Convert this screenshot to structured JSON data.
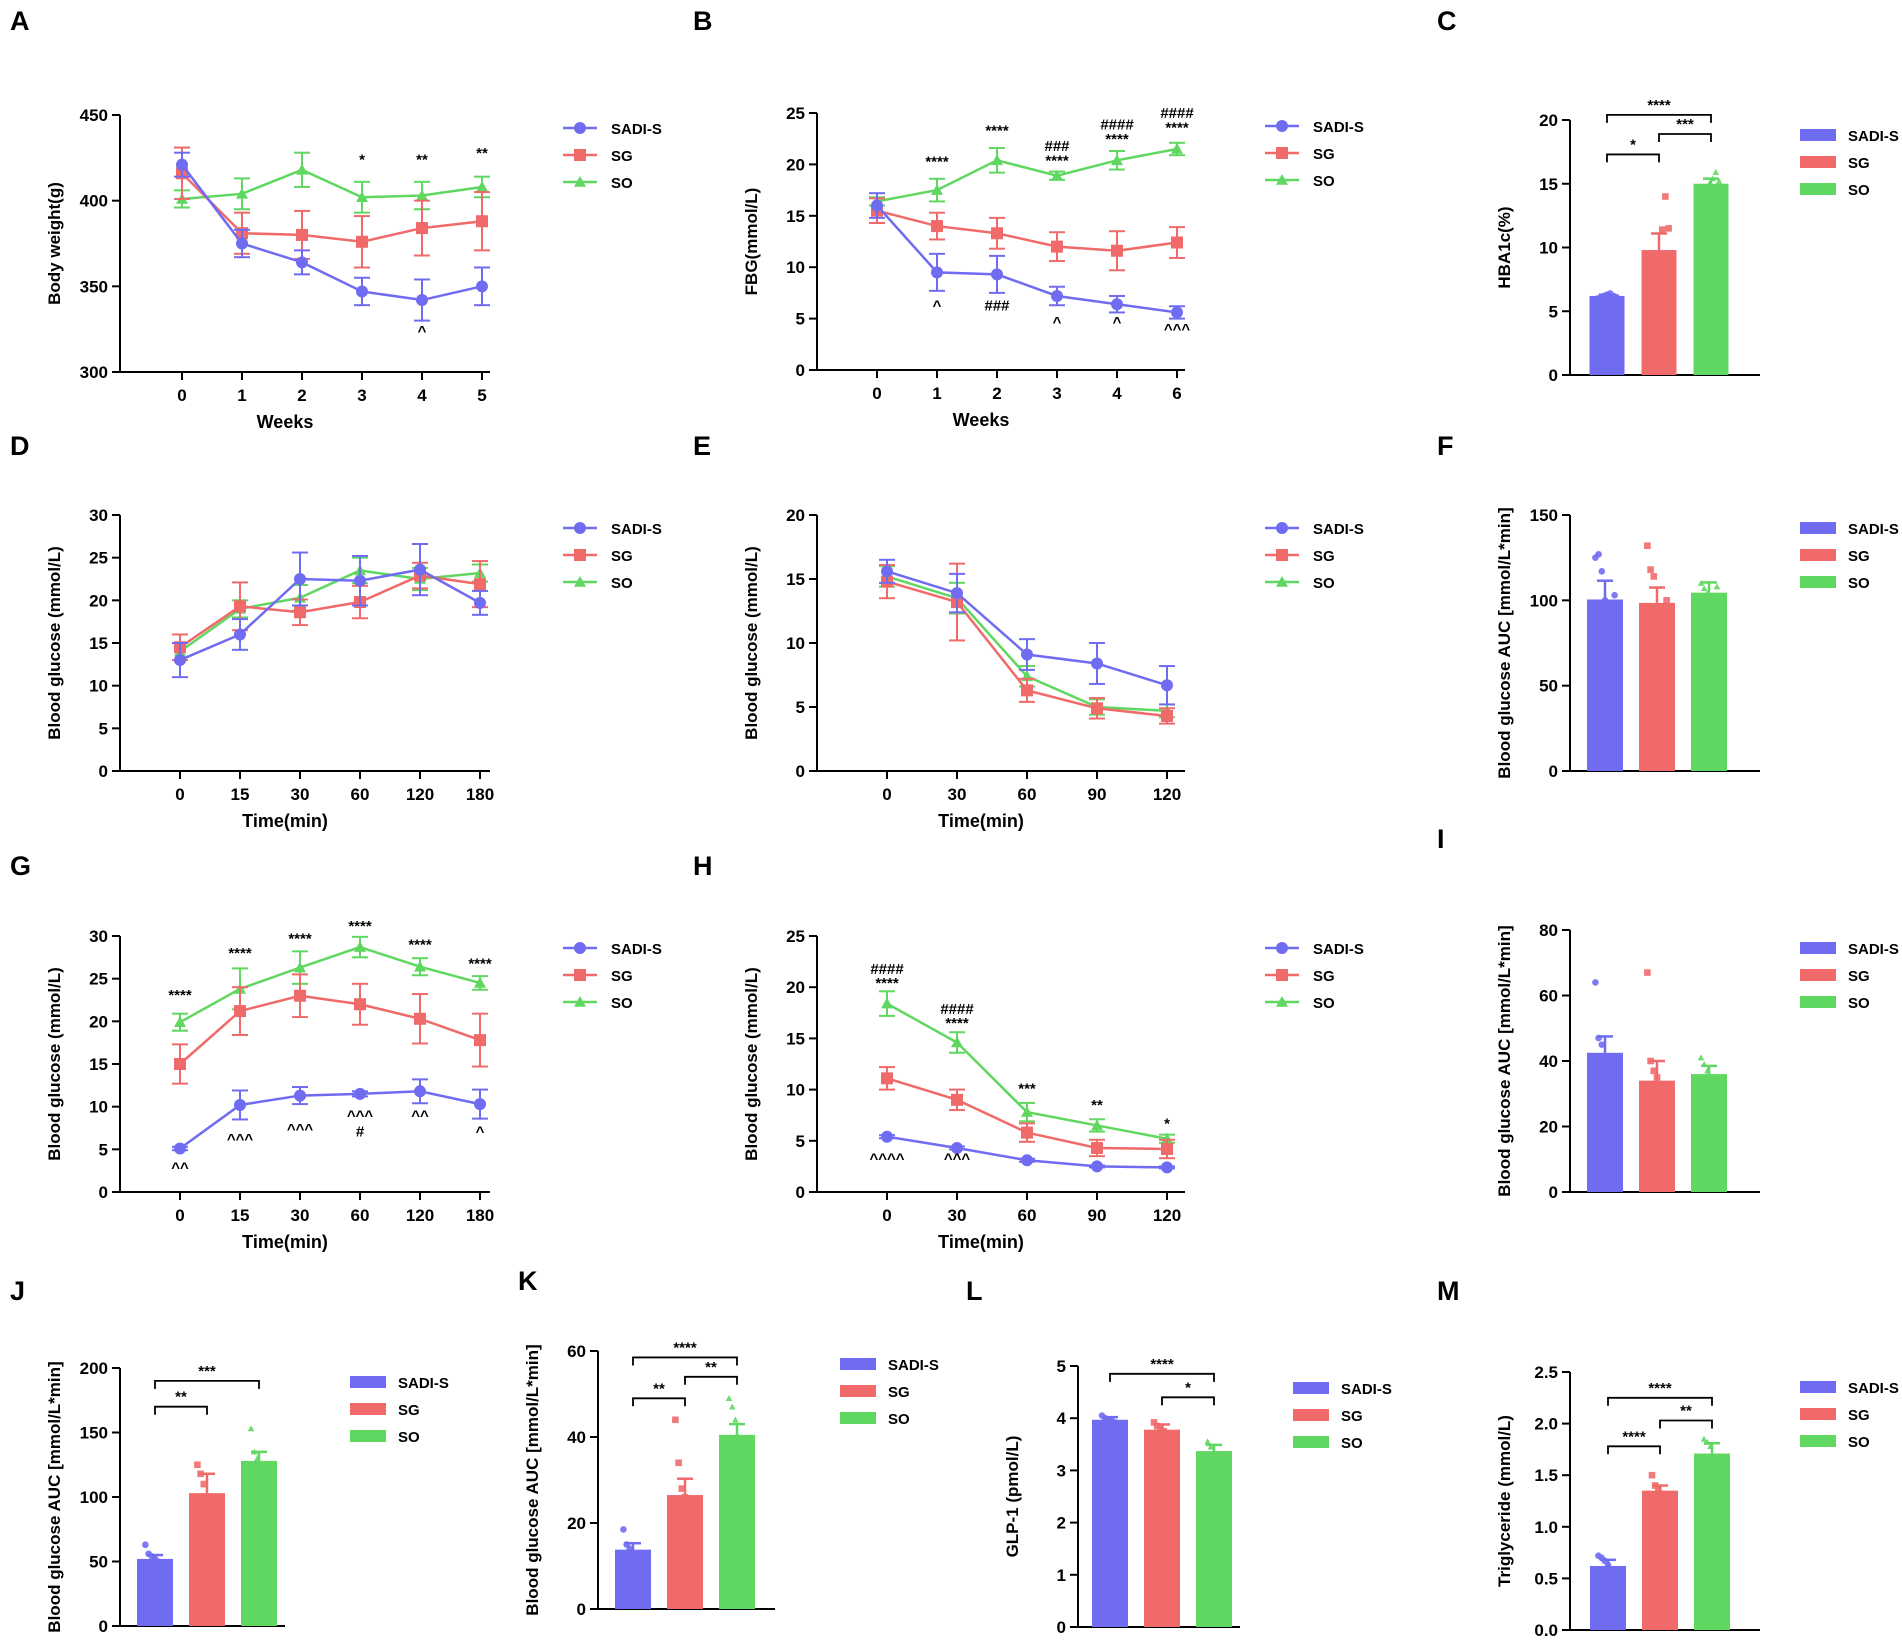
{
  "colors": {
    "SADI-S": "#6f6cf2",
    "SG": "#f06a6a",
    "SO": "#5fd760"
  },
  "chart_data": [
    {
      "panel": "A",
      "type": "line",
      "ylabel": "Body weight(g)",
      "xlabel": "Weeks",
      "ylim": [
        300,
        450
      ],
      "yticks": [
        300,
        350,
        400,
        450
      ],
      "categories": [
        "0",
        "1",
        "2",
        "3",
        "4",
        "5"
      ],
      "series": [
        {
          "name": "SADI-S",
          "values": [
            421,
            375,
            364,
            347,
            342,
            350
          ],
          "errors": [
            7,
            8,
            7,
            8,
            12,
            11
          ]
        },
        {
          "name": "SG",
          "values": [
            416,
            381,
            380,
            376,
            384,
            388
          ],
          "errors": [
            15,
            12,
            14,
            15,
            16,
            17
          ]
        },
        {
          "name": "SO",
          "values": [
            401,
            404,
            418,
            402,
            403,
            408
          ],
          "errors": [
            5,
            9,
            10,
            9,
            8,
            6
          ]
        }
      ],
      "legend": [
        "SADI-S",
        "SG",
        "SO"
      ],
      "annotations": [
        {
          "x": 3,
          "y": 421,
          "text": "*"
        },
        {
          "x": 4,
          "y": 421,
          "text": "**"
        },
        {
          "x": 5,
          "y": 425,
          "text": "**"
        },
        {
          "x": 4,
          "y": 321,
          "text": "^"
        }
      ]
    },
    {
      "panel": "B",
      "type": "line",
      "ylabel": "FBG(mmol/L)",
      "xlabel": "Weeks",
      "ylim": [
        0,
        25
      ],
      "yticks": [
        0,
        5,
        10,
        15,
        20,
        25
      ],
      "categories": [
        "0",
        "1",
        "2",
        "3",
        "4",
        "6"
      ],
      "series": [
        {
          "name": "SADI-S",
          "values": [
            16,
            9.5,
            9.3,
            7.2,
            6.4,
            5.6
          ],
          "errors": [
            1.2,
            1.8,
            1.8,
            0.9,
            0.8,
            0.6
          ]
        },
        {
          "name": "SG",
          "values": [
            15.5,
            14,
            13.3,
            12,
            11.6,
            12.4
          ],
          "errors": [
            1.2,
            1.3,
            1.5,
            1.4,
            1.9,
            1.5
          ]
        },
        {
          "name": "SO",
          "values": [
            16.4,
            17.5,
            20.4,
            18.9,
            20.4,
            21.5
          ],
          "errors": [
            0.4,
            1.1,
            1.2,
            0.4,
            0.9,
            0.6
          ]
        }
      ],
      "legend": [
        "SADI-S",
        "SG",
        "SO"
      ],
      "annotations": [
        {
          "x": 1,
          "y": 19.8,
          "text": "****"
        },
        {
          "x": 2,
          "y": 22.8,
          "text": "****"
        },
        {
          "x": 3,
          "y": 21.3,
          "text": "###"
        },
        {
          "x": 3,
          "y": 19.9,
          "text": "****"
        },
        {
          "x": 4,
          "y": 23.4,
          "text": "####"
        },
        {
          "x": 4,
          "y": 22,
          "text": "****"
        },
        {
          "x": 5,
          "y": 24.5,
          "text": "####"
        },
        {
          "x": 5,
          "y": 23.1,
          "text": "****"
        },
        {
          "x": 1,
          "y": 5.8,
          "text": "^"
        },
        {
          "x": 2,
          "y": 5.8,
          "text": "###"
        },
        {
          "x": 3,
          "y": 4.2,
          "text": "^"
        },
        {
          "x": 4,
          "y": 4.2,
          "text": "^"
        },
        {
          "x": 5,
          "y": 3.5,
          "text": "^^^"
        }
      ]
    },
    {
      "panel": "C",
      "type": "bar",
      "ylabel": "HBA1c(%)",
      "ylim": [
        0,
        20
      ],
      "yticks": [
        0,
        5,
        10,
        15,
        20
      ],
      "categories": [
        "SADI-S",
        "SG",
        "SO"
      ],
      "values": [
        6.2,
        9.8,
        15
      ],
      "errors": [
        0.1,
        1.3,
        0.4
      ],
      "points": [
        [
          6.0,
          6.1,
          6.2,
          6.3,
          6.4,
          6.2,
          6.1
        ],
        [
          6.8,
          7.3,
          8.5,
          9.5,
          11.4,
          14.0,
          11.5
        ],
        [
          14.1,
          14.7,
          15.0,
          15.4,
          15.9,
          15.2
        ]
      ],
      "legend": [
        "SADI-S",
        "SG",
        "SO"
      ],
      "brackets": [
        {
          "from": 0,
          "to": 1,
          "y": 17.3,
          "text": "*"
        },
        {
          "from": 1,
          "to": 2,
          "y": 18.9,
          "text": "***"
        },
        {
          "from": 0,
          "to": 2,
          "y": 20.4,
          "text": "****"
        }
      ]
    },
    {
      "panel": "D",
      "type": "line",
      "ylabel": "Blood glucose (mmol/L)",
      "xlabel": "Time(min)",
      "ylim": [
        0,
        30
      ],
      "yticks": [
        0,
        5,
        10,
        15,
        20,
        25,
        30
      ],
      "categories": [
        "0",
        "15",
        "30",
        "60",
        "120",
        "180"
      ],
      "series": [
        {
          "name": "SADI-S",
          "values": [
            13,
            16,
            22.5,
            22.3,
            23.6,
            19.7
          ],
          "errors": [
            2,
            1.8,
            3.1,
            2.9,
            3,
            1.4
          ]
        },
        {
          "name": "SG",
          "values": [
            14.5,
            19.3,
            18.6,
            19.8,
            22.9,
            21.9
          ],
          "errors": [
            1.5,
            2.8,
            1.5,
            1.9,
            1.5,
            2.7
          ]
        },
        {
          "name": "SO",
          "values": [
            14,
            19,
            20.3,
            23.5,
            22.5,
            23.2
          ],
          "errors": [
            1,
            1,
            1.5,
            1.5,
            1.3,
            1
          ]
        }
      ],
      "legend": [
        "SADI-S",
        "SG",
        "SO"
      ]
    },
    {
      "panel": "E",
      "type": "line",
      "ylabel": "Blood glucose (mmol/L)",
      "xlabel": "Time(min)",
      "ylim": [
        0,
        20
      ],
      "yticks": [
        0,
        5,
        10,
        15,
        20
      ],
      "categories": [
        "0",
        "30",
        "60",
        "90",
        "120"
      ],
      "series": [
        {
          "name": "SADI-S",
          "values": [
            15.6,
            13.9,
            9.1,
            8.4,
            6.7
          ],
          "errors": [
            0.9,
            1.5,
            1.2,
            1.6,
            1.5
          ]
        },
        {
          "name": "SG",
          "values": [
            14.8,
            13.2,
            6.3,
            4.9,
            4.3
          ],
          "errors": [
            1.3,
            3,
            0.9,
            0.8,
            0.6
          ]
        },
        {
          "name": "SO",
          "values": [
            15.2,
            13.5,
            7.4,
            5.0,
            4.7
          ],
          "errors": [
            0.8,
            1.2,
            0.8,
            0.6,
            0.5
          ]
        }
      ],
      "legend": [
        "SADI-S",
        "SG",
        "SO"
      ]
    },
    {
      "panel": "F",
      "type": "bar",
      "ylabel": "Blood glucose AUC [mmol/L*min]",
      "ylim": [
        0,
        150
      ],
      "yticks": [
        0,
        50,
        100,
        150
      ],
      "categories": [
        "SADI-S",
        "SG",
        "SO"
      ],
      "values": [
        100.5,
        98.5,
        104.5
      ],
      "errors": [
        11,
        9,
        6
      ],
      "points": [
        [
          125,
          127,
          117,
          100,
          89,
          47,
          103
        ],
        [
          132,
          118,
          114,
          95,
          90,
          80,
          100
        ],
        [
          110,
          107,
          104,
          96,
          73,
          108
        ]
      ],
      "legend": [
        "SADI-S",
        "SG",
        "SO"
      ]
    },
    {
      "panel": "G",
      "type": "line",
      "ylabel": "Blood glucose (mmol/L)",
      "xlabel": "Time(min)",
      "ylim": [
        0,
        30
      ],
      "yticks": [
        0,
        5,
        10,
        15,
        20,
        25,
        30
      ],
      "categories": [
        "0",
        "15",
        "30",
        "60",
        "120",
        "180"
      ],
      "series": [
        {
          "name": "SADI-S",
          "values": [
            5.1,
            10.2,
            11.3,
            11.5,
            11.8,
            10.3
          ],
          "errors": [
            0.2,
            1.7,
            1,
            0.3,
            1.4,
            1.7
          ]
        },
        {
          "name": "SG",
          "values": [
            15,
            21.2,
            23,
            22,
            20.3,
            17.8
          ],
          "errors": [
            2.3,
            2.8,
            2.5,
            2.4,
            2.9,
            3.1
          ]
        },
        {
          "name": "SO",
          "values": [
            19.9,
            23.8,
            26.3,
            28.7,
            26.4,
            24.5
          ],
          "errors": [
            1,
            2.4,
            1.9,
            1.2,
            1,
            0.8
          ]
        }
      ],
      "legend": [
        "SADI-S",
        "SG",
        "SO"
      ],
      "annotations": [
        {
          "x": 0,
          "y": 22.5,
          "text": "****"
        },
        {
          "x": 1,
          "y": 27.4,
          "text": "****"
        },
        {
          "x": 2,
          "y": 29.1,
          "text": "****"
        },
        {
          "x": 3,
          "y": 30.6,
          "text": "****"
        },
        {
          "x": 4,
          "y": 28.4,
          "text": "****"
        },
        {
          "x": 5,
          "y": 26.2,
          "text": "****"
        },
        {
          "x": 0,
          "y": 2.3,
          "text": "^^"
        },
        {
          "x": 1,
          "y": 5.6,
          "text": "^^^"
        },
        {
          "x": 2,
          "y": 6.8,
          "text": "^^^"
        },
        {
          "x": 3,
          "y": 8.4,
          "text": "^^^"
        },
        {
          "x": 3,
          "y": 6.5,
          "text": "#"
        },
        {
          "x": 4,
          "y": 8.4,
          "text": "^^"
        },
        {
          "x": 5,
          "y": 6.5,
          "text": "^"
        }
      ]
    },
    {
      "panel": "H",
      "type": "line",
      "ylabel": "Blood glucose (mmol/L)",
      "xlabel": "Time(min)",
      "ylim": [
        0,
        25
      ],
      "yticks": [
        0,
        5,
        10,
        15,
        20,
        25
      ],
      "categories": [
        "0",
        "30",
        "60",
        "90",
        "120"
      ],
      "series": [
        {
          "name": "SADI-S",
          "values": [
            5.4,
            4.3,
            3.1,
            2.5,
            2.4
          ],
          "errors": [
            0.15,
            0.15,
            0.15,
            0.1,
            0.1
          ]
        },
        {
          "name": "SG",
          "values": [
            11.1,
            9,
            5.8,
            4.3,
            4.2
          ],
          "errors": [
            1.1,
            1,
            0.9,
            0.8,
            0.9
          ]
        },
        {
          "name": "SO",
          "values": [
            18.4,
            14.6,
            7.8,
            6.5,
            5.2
          ],
          "errors": [
            1.2,
            1,
            0.9,
            0.6,
            0.4
          ]
        }
      ],
      "legend": [
        "SADI-S",
        "SG",
        "SO"
      ],
      "annotations": [
        {
          "x": 0,
          "y": 21.3,
          "text": "####"
        },
        {
          "x": 0,
          "y": 19.9,
          "text": "****"
        },
        {
          "x": 1,
          "y": 17.4,
          "text": "####"
        },
        {
          "x": 1,
          "y": 16,
          "text": "****"
        },
        {
          "x": 2,
          "y": 9.6,
          "text": "***"
        },
        {
          "x": 3,
          "y": 8,
          "text": "**"
        },
        {
          "x": 4,
          "y": 6.2,
          "text": "*"
        },
        {
          "x": 0,
          "y": 2.8,
          "text": "^^^^"
        },
        {
          "x": 1,
          "y": 2.8,
          "text": "^^^"
        }
      ]
    },
    {
      "panel": "I",
      "type": "bar",
      "ylabel": "Blood glucose AUC [mmol/L*min]",
      "ylim": [
        0,
        80
      ],
      "yticks": [
        0,
        20,
        40,
        60,
        80
      ],
      "categories": [
        "SADI-S",
        "SG",
        "SO"
      ],
      "values": [
        42.5,
        34,
        36
      ],
      "errors": [
        5,
        6,
        2.5
      ],
      "points": [
        [
          64,
          47,
          45,
          41,
          36,
          33,
          29
        ],
        [
          67,
          40,
          37,
          35,
          29,
          15,
          32
        ],
        [
          41,
          39,
          37,
          35,
          33,
          28
        ]
      ],
      "legend": [
        "SADI-S",
        "SG",
        "SO"
      ]
    },
    {
      "panel": "J",
      "type": "bar",
      "ylabel": "Blood glucose AUC [mmol/L*min]",
      "ylim": [
        0,
        200
      ],
      "yticks": [
        0,
        50,
        100,
        150,
        200
      ],
      "categories": [
        "SADI-S",
        "SG",
        "SO"
      ],
      "values": [
        52,
        103,
        128
      ],
      "errors": [
        3,
        15,
        7
      ],
      "points": [
        [
          63,
          56,
          54,
          52,
          50,
          49,
          47
        ],
        [
          125,
          118,
          110,
          100,
          90,
          66,
          50
        ],
        [
          153,
          135,
          130,
          125,
          118,
          112
        ]
      ],
      "legend": [
        "SADI-S",
        "SG",
        "SO"
      ],
      "brackets": [
        {
          "from": 0,
          "to": 1,
          "y": 170,
          "text": "**"
        },
        {
          "from": 0,
          "to": 2,
          "y": 190,
          "text": "***"
        }
      ]
    },
    {
      "panel": "K",
      "type": "bar",
      "ylabel": "Blood glucose AUC [mmol/L*min]",
      "ylim": [
        0,
        60
      ],
      "yticks": [
        0,
        20,
        40,
        60
      ],
      "categories": [
        "SADI-S",
        "SG",
        "SO"
      ],
      "values": [
        13.8,
        26.5,
        40.5
      ],
      "errors": [
        1.5,
        3.8,
        2.5
      ],
      "points": [
        [
          18.5,
          15,
          14,
          13,
          12,
          11.5,
          12
        ],
        [
          44,
          34,
          28,
          26,
          22,
          18,
          16
        ],
        [
          49,
          47,
          44,
          40,
          36,
          33
        ]
      ],
      "legend": [
        "SADI-S",
        "SG",
        "SO"
      ],
      "brackets": [
        {
          "from": 0,
          "to": 1,
          "y": 49,
          "text": "**"
        },
        {
          "from": 1,
          "to": 2,
          "y": 54,
          "text": "**"
        },
        {
          "from": 0,
          "to": 2,
          "y": 58.5,
          "text": "****"
        }
      ]
    },
    {
      "panel": "L",
      "type": "bar",
      "ylabel": "GLP-1 (pmol/L)",
      "ylim": [
        0,
        5
      ],
      "yticks": [
        0,
        1,
        2,
        3,
        4,
        5
      ],
      "categories": [
        "SADI-S",
        "SG",
        "SO"
      ],
      "values": [
        3.97,
        3.78,
        3.37
      ],
      "errors": [
        0.05,
        0.1,
        0.12
      ],
      "points": [
        [
          4.05,
          4.0,
          3.97,
          3.95,
          3.92,
          3.9
        ],
        [
          3.92,
          3.85,
          3.8,
          3.75,
          3.65,
          3.62
        ],
        [
          3.55,
          3.45,
          3.35,
          3.2,
          3.3
        ]
      ],
      "legend": [
        "SADI-S",
        "SG",
        "SO"
      ],
      "brackets": [
        {
          "from": 1,
          "to": 2,
          "y": 4.4,
          "text": "*"
        },
        {
          "from": 0,
          "to": 2,
          "y": 4.85,
          "text": "****"
        }
      ]
    },
    {
      "panel": "M",
      "type": "bar",
      "ylabel": "Triglyceride (mmol/L)",
      "ylim": [
        0,
        2.5
      ],
      "yticks": [
        "0.0",
        "0.5",
        "1.0",
        "1.5",
        "2.0",
        "2.5"
      ],
      "categories": [
        "SADI-S",
        "SG",
        "SO"
      ],
      "values": [
        0.62,
        1.35,
        1.71
      ],
      "errors": [
        0.06,
        0.05,
        0.1
      ],
      "points": [
        [
          0.72,
          0.7,
          0.67,
          0.63,
          0.55,
          0.5,
          0.45
        ],
        [
          1.5,
          1.4,
          1.36,
          1.32,
          1.27,
          1.24
        ],
        [
          1.85,
          1.82,
          1.78,
          1.65,
          1.5,
          1.4
        ]
      ],
      "legend": [
        "SADI-S",
        "SG",
        "SO"
      ],
      "brackets": [
        {
          "from": 0,
          "to": 1,
          "y": 1.78,
          "text": "****"
        },
        {
          "from": 1,
          "to": 2,
          "y": 2.03,
          "text": "**"
        },
        {
          "from": 0,
          "to": 2,
          "y": 2.25,
          "text": "****"
        }
      ]
    }
  ]
}
